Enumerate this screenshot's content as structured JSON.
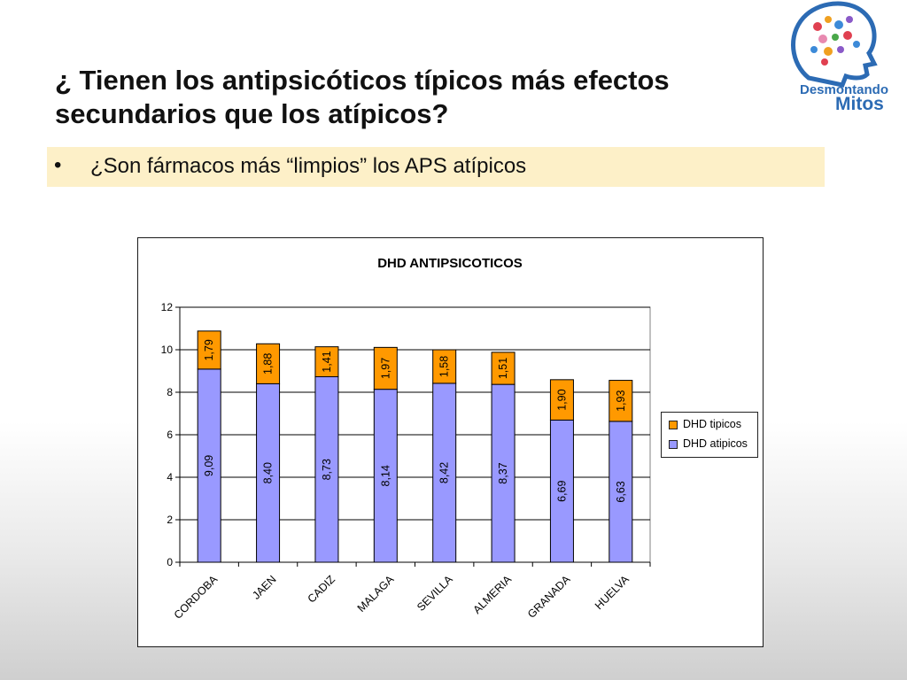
{
  "slide": {
    "title_lines": [
      "¿ Tienen los antipsicóticos típicos más efectos",
      "secundarios que los atípicos?"
    ],
    "bullet_symbol": "•",
    "bullet_text": "¿Son fármacos más “limpios” los APS atípicos"
  },
  "logo": {
    "line1": "Desmontando",
    "line2": "Mitos"
  },
  "chart_data": {
    "type": "bar",
    "stacked": true,
    "title": "DHD ANTIPSICOTICOS",
    "categories": [
      "CORDOBA",
      "JAEN",
      "CADIZ",
      "MALAGA",
      "SEVILLA",
      "ALMERIA",
      "GRANADA",
      "HUELVA"
    ],
    "series": [
      {
        "name": "DHD atipicos",
        "color": "#9999ff",
        "values": [
          9.09,
          8.4,
          8.73,
          8.14,
          8.42,
          8.37,
          6.69,
          6.63
        ],
        "labels": [
          "9,09",
          "8,40",
          "8,73",
          "8,14",
          "8,42",
          "8,37",
          "6,69",
          "6,63"
        ]
      },
      {
        "name": "DHD tipicos",
        "color": "#ff9900",
        "values": [
          1.79,
          1.88,
          1.41,
          1.97,
          1.58,
          1.51,
          1.9,
          1.93
        ],
        "labels": [
          "1,79",
          "1,88",
          "1,41",
          "1,97",
          "1,58",
          "1,51",
          "1,90",
          "1,93"
        ]
      }
    ],
    "yticks": [
      "0",
      "2",
      "4",
      "6",
      "8",
      "10",
      "12"
    ],
    "ylim": [
      0,
      12
    ],
    "grid": true,
    "legend": {
      "position": "right",
      "order": [
        "DHD tipicos",
        "DHD atipicos"
      ]
    },
    "plot_background": "#ffffff",
    "xlabel": "",
    "ylabel": ""
  }
}
